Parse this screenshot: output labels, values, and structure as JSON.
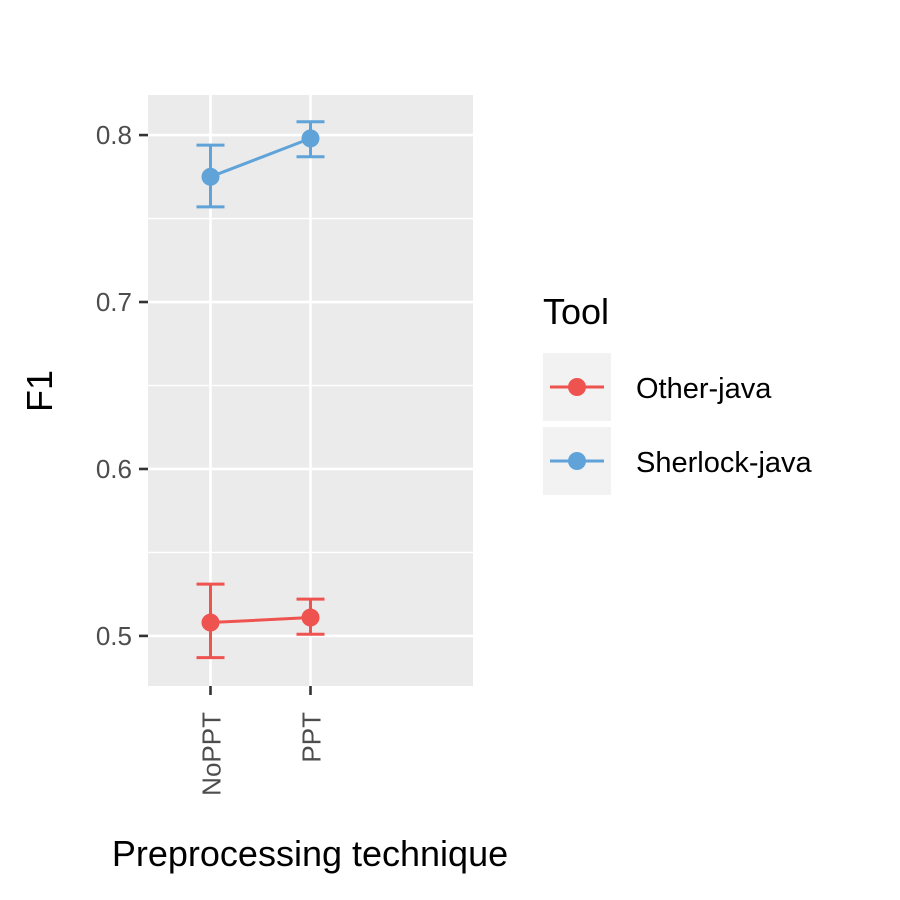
{
  "chart_data": {
    "type": "line",
    "xlabel": "Preprocessing technique",
    "ylabel": "F1",
    "categories": [
      "NoPPT",
      "PPT"
    ],
    "ylim": [
      0.47,
      0.824
    ],
    "yticks": [
      0.5,
      0.6,
      0.7,
      0.8
    ],
    "ytick_labels": [
      "0.5",
      "0.6",
      "0.7",
      "0.8"
    ],
    "grid": true,
    "legend": {
      "title": "Tool",
      "position": "right"
    },
    "series": [
      {
        "name": "Other-java",
        "color": "#ef5350",
        "values": [
          0.508,
          0.511
        ],
        "lower": [
          0.487,
          0.501
        ],
        "upper": [
          0.531,
          0.522
        ]
      },
      {
        "name": "Sherlock-java",
        "color": "#5fa3d9",
        "values": [
          0.775,
          0.798
        ],
        "lower": [
          0.757,
          0.787
        ],
        "upper": [
          0.794,
          0.808
        ]
      }
    ]
  }
}
